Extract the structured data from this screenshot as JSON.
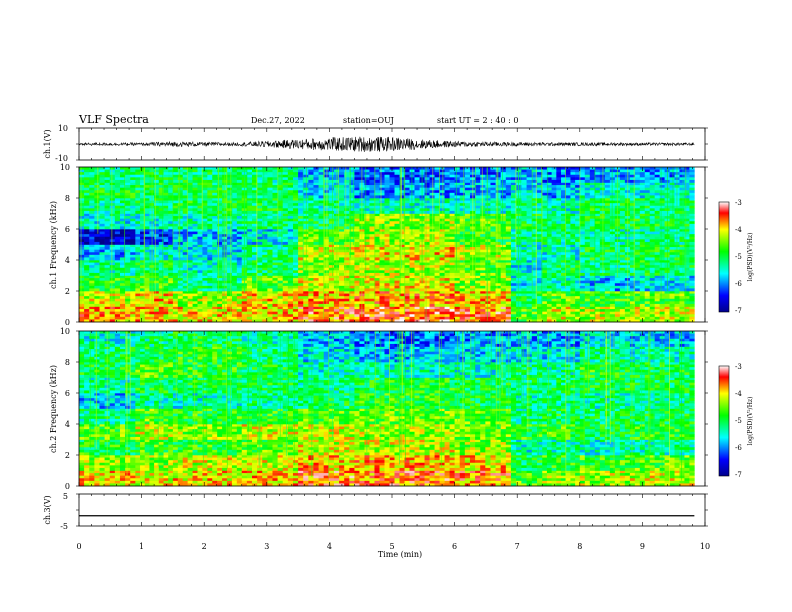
{
  "header": {
    "title": "VLF Spectra",
    "date": "Dec.27, 2022",
    "station": "station=OUJ",
    "start": "start  UT =  2 : 40 : 0"
  },
  "chart_data": [
    {
      "type": "line",
      "panel": "ch1-waveform",
      "ylabel": "ch.1(V)",
      "ylim": [
        -10,
        10
      ],
      "yticks": [
        "10",
        "-10"
      ],
      "x_range_min": [
        0,
        9.83
      ],
      "baseline": -0.1,
      "amplitude_envelope": [
        {
          "t": 0.0,
          "amp": 0.8
        },
        {
          "t": 1.0,
          "amp": 0.9
        },
        {
          "t": 1.5,
          "amp": 1.6
        },
        {
          "t": 2.5,
          "amp": 1.0
        },
        {
          "t": 3.0,
          "amp": 2.0
        },
        {
          "t": 3.5,
          "amp": 3.2
        },
        {
          "t": 4.0,
          "amp": 4.2
        },
        {
          "t": 4.5,
          "amp": 5.0
        },
        {
          "t": 5.0,
          "amp": 4.5
        },
        {
          "t": 5.5,
          "amp": 3.0
        },
        {
          "t": 6.0,
          "amp": 1.8
        },
        {
          "t": 7.0,
          "amp": 1.2
        },
        {
          "t": 8.0,
          "amp": 1.0
        },
        {
          "t": 9.0,
          "amp": 0.9
        },
        {
          "t": 9.83,
          "amp": 0.8
        }
      ]
    },
    {
      "type": "heatmap",
      "panel": "ch1-spectrogram",
      "ylabel": "ch.1 Frequency  (kHz)",
      "ylim": [
        0,
        10
      ],
      "yticks": [
        "0",
        "2",
        "4",
        "6",
        "8",
        "10"
      ],
      "x_range_min": [
        0,
        9.83
      ],
      "colorbar": {
        "label": "log(PSD)(V²/Hz)",
        "range": [
          -7,
          -3
        ],
        "ticks": [
          "-3",
          "-4",
          "-5",
          "-6",
          "-7"
        ]
      },
      "segments_min": [
        0,
        0.9,
        1.5,
        2.6,
        3.5,
        4.4,
        6.0,
        6.9,
        7.4,
        8.0,
        8.8,
        9.83
      ],
      "bands_khz": [
        0,
        1,
        2,
        3,
        4,
        5,
        6,
        7,
        8,
        9,
        10
      ],
      "log_psd": [
        [
          -3.8,
          -4.2,
          -4.8,
          -5.3,
          -5.8,
          -6.6,
          -5.5,
          -5.2,
          -5.0,
          -5.2
        ],
        [
          -3.9,
          -3.9,
          -4.6,
          -5.0,
          -5.4,
          -6.3,
          -5.4,
          -5.1,
          -5.0,
          -5.1
        ],
        [
          -4.0,
          -4.3,
          -5.2,
          -5.4,
          -5.6,
          -5.8,
          -5.3,
          -5.0,
          -5.0,
          -5.1
        ],
        [
          -3.9,
          -4.0,
          -4.6,
          -5.1,
          -5.2,
          -5.6,
          -5.2,
          -5.0,
          -5.1,
          -5.2
        ],
        [
          -3.6,
          -3.9,
          -4.2,
          -4.4,
          -4.2,
          -4.6,
          -5.0,
          -5.3,
          -5.6,
          -5.8
        ],
        [
          -3.5,
          -3.8,
          -4.1,
          -4.3,
          -4.0,
          -4.3,
          -4.4,
          -5.4,
          -5.9,
          -6.1
        ],
        [
          -3.6,
          -3.9,
          -4.4,
          -4.6,
          -4.3,
          -4.8,
          -4.6,
          -5.4,
          -5.8,
          -6.0
        ],
        [
          -4.6,
          -5.0,
          -5.6,
          -5.5,
          -5.4,
          -5.3,
          -5.0,
          -5.2,
          -5.6,
          -5.8
        ],
        [
          -4.2,
          -4.6,
          -5.3,
          -5.0,
          -5.5,
          -5.2,
          -5.2,
          -5.4,
          -5.8,
          -6.0
        ],
        [
          -4.3,
          -4.7,
          -5.8,
          -5.2,
          -5.0,
          -5.3,
          -5.0,
          -5.0,
          -5.4,
          -5.8
        ],
        [
          -4.2,
          -4.6,
          -5.6,
          -5.0,
          -5.0,
          -5.2,
          -5.0,
          -5.1,
          -5.5,
          -5.9
        ]
      ]
    },
    {
      "type": "heatmap",
      "panel": "ch2-spectrogram",
      "ylabel": "ch.2 Frequency  (kHz)",
      "ylim": [
        0,
        10
      ],
      "yticks": [
        "0",
        "2",
        "4",
        "6",
        "8",
        "10"
      ],
      "x_range_min": [
        0,
        9.83
      ],
      "colorbar": {
        "label": "log(PSD)(V²/Hz)",
        "range": [
          -7,
          -3
        ],
        "ticks": [
          "-3",
          "-4",
          "-5",
          "-6",
          "-7"
        ]
      },
      "segments_min": [
        0,
        0.9,
        1.5,
        2.6,
        3.5,
        4.4,
        6.0,
        6.9,
        7.4,
        8.0,
        8.8,
        9.83
      ],
      "bands_khz": [
        0,
        1,
        2,
        3,
        4,
        5,
        6,
        7,
        8,
        9,
        10
      ],
      "log_psd": [
        [
          -4.0,
          -4.4,
          -4.9,
          -4.6,
          -5.2,
          -5.8,
          -5.3,
          -5.0,
          -5.1,
          -5.4
        ],
        [
          -4.1,
          -4.4,
          -4.7,
          -4.2,
          -4.6,
          -5.3,
          -5.0,
          -4.6,
          -5.0,
          -5.2
        ],
        [
          -4.0,
          -4.2,
          -4.8,
          -4.4,
          -4.8,
          -5.4,
          -5.0,
          -4.8,
          -4.8,
          -5.0
        ],
        [
          -3.9,
          -4.2,
          -4.6,
          -4.2,
          -4.8,
          -5.2,
          -5.0,
          -5.0,
          -5.1,
          -5.3
        ],
        [
          -3.6,
          -3.9,
          -4.2,
          -4.2,
          -4.6,
          -5.0,
          -5.2,
          -5.4,
          -5.6,
          -5.8
        ],
        [
          -3.6,
          -3.8,
          -4.2,
          -4.3,
          -4.5,
          -4.8,
          -4.9,
          -5.4,
          -5.8,
          -6.0
        ],
        [
          -3.7,
          -4.0,
          -4.4,
          -4.5,
          -4.6,
          -5.0,
          -5.0,
          -5.4,
          -5.7,
          -5.9
        ],
        [
          -4.6,
          -5.0,
          -5.4,
          -4.8,
          -5.2,
          -5.3,
          -5.1,
          -5.2,
          -5.6,
          -5.8
        ],
        [
          -4.4,
          -4.8,
          -5.3,
          -4.7,
          -5.0,
          -5.2,
          -5.1,
          -5.3,
          -5.6,
          -5.9
        ],
        [
          -4.3,
          -4.7,
          -5.4,
          -5.0,
          -5.1,
          -5.3,
          -5.0,
          -4.8,
          -5.2,
          -5.6
        ],
        [
          -4.2,
          -4.6,
          -5.3,
          -4.8,
          -5.0,
          -5.2,
          -5.0,
          -5.0,
          -5.4,
          -5.8
        ]
      ]
    },
    {
      "type": "line",
      "panel": "ch3-waveform",
      "ylabel": "ch.3(V)",
      "ylim": [
        -5,
        5
      ],
      "yticks": [
        "5",
        "-5"
      ],
      "x_range_min": [
        0,
        9.83
      ],
      "baseline": -1.8,
      "amplitude_envelope": [
        {
          "t": 0.0,
          "amp": 0.0
        },
        {
          "t": 9.83,
          "amp": 0.0
        }
      ]
    }
  ],
  "x_axis": {
    "label": "Time  (min)",
    "ticks": [
      "0",
      "1",
      "2",
      "3",
      "4",
      "5",
      "6",
      "7",
      "8",
      "9",
      "10"
    ],
    "range": [
      0,
      10
    ]
  }
}
